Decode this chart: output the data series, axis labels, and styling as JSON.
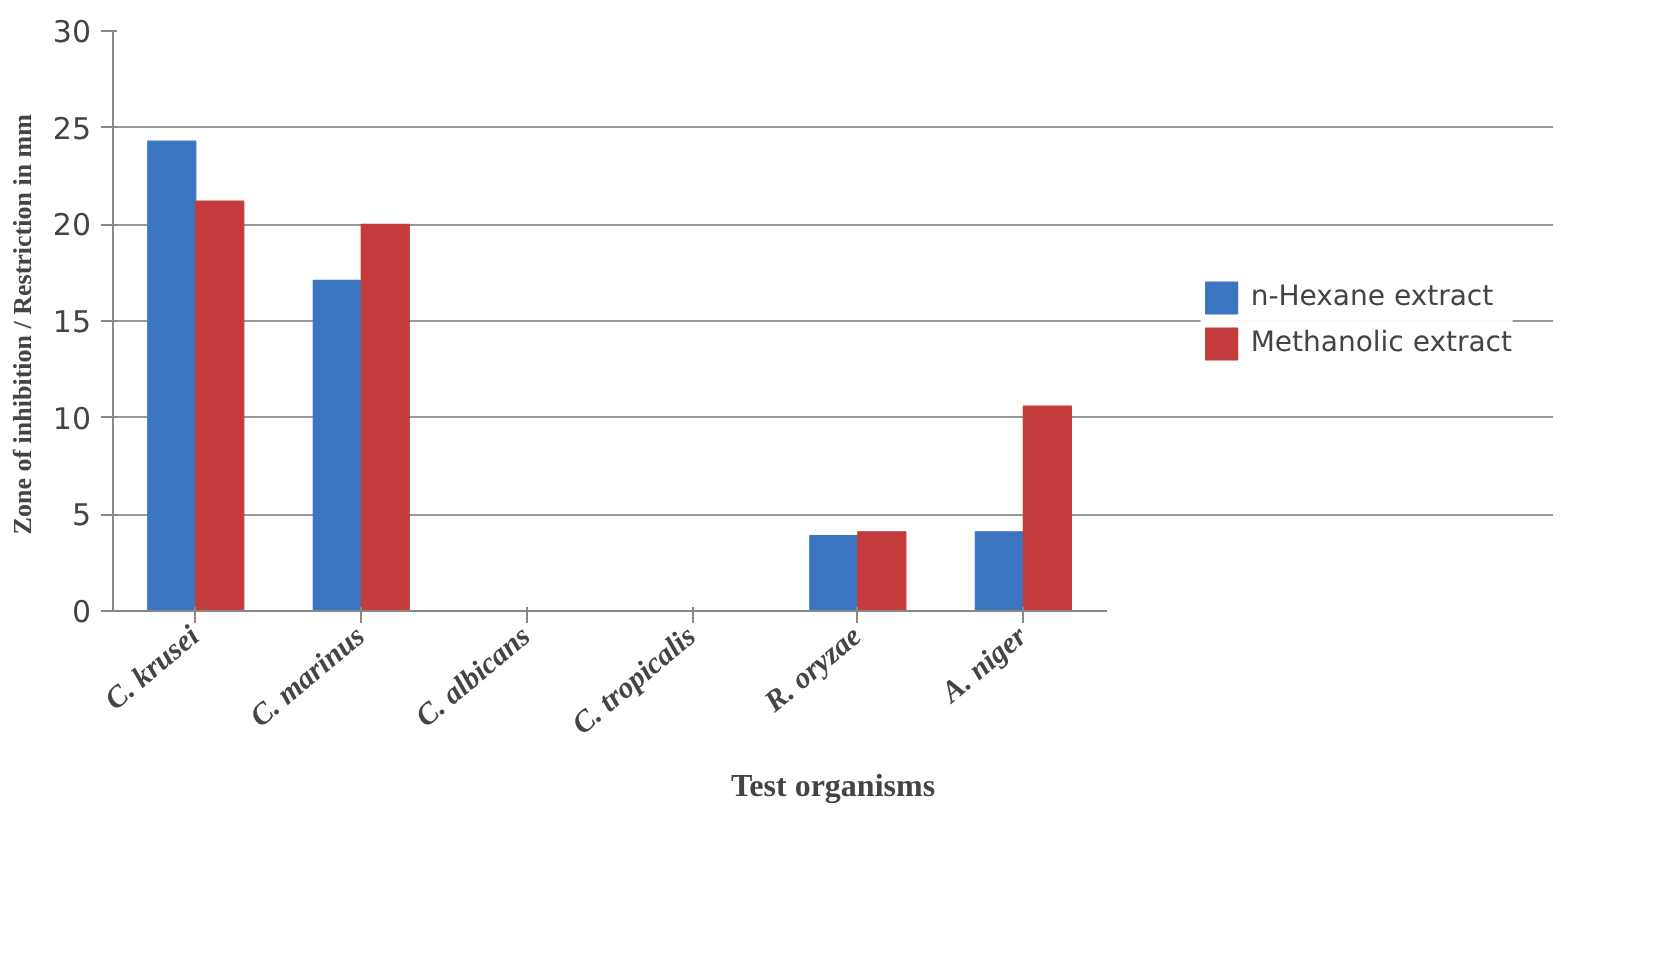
{
  "chart_data": {
    "type": "bar",
    "xlabel": "Test organisms",
    "ylabel": "Zone  of inhibition / Restriction in mm",
    "categories": [
      "C. krusei",
      "C. marinus",
      "C. albicans",
      "C. tropicalis",
      "R. oryzae",
      "A. niger"
    ],
    "series": [
      {
        "name": "n-Hexane extract",
        "color": "#3c75bf",
        "values": [
          24.3,
          17.1,
          0,
          0,
          3.9,
          4.1
        ]
      },
      {
        "name": "Methanolic extract",
        "color": "#c33b3b",
        "values": [
          21.2,
          20.0,
          0,
          0,
          4.1,
          10.6
        ]
      }
    ],
    "ylim": [
      0,
      30
    ],
    "yticks": [
      0,
      5,
      10,
      15,
      20,
      25,
      30
    ],
    "grid": "y",
    "legend": "right"
  }
}
